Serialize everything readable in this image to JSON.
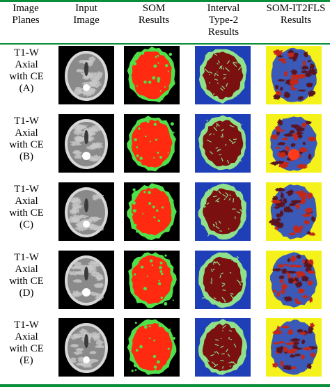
{
  "headers": [
    [
      "Image",
      "Planes"
    ],
    [
      "Input",
      "Image"
    ],
    [
      "SOM",
      "Results"
    ],
    [
      "Interval",
      "Type-2",
      "Results"
    ],
    [
      "SOM-IT2FLS",
      "Results"
    ]
  ],
  "rows": [
    {
      "label": [
        "T1-W",
        "Axial",
        "with CE",
        "(A)"
      ]
    },
    {
      "label": [
        "T1-W",
        "Axial",
        "with CE",
        "(B)"
      ]
    },
    {
      "label": [
        "T1-W",
        "Axial",
        "with CE",
        "(C)"
      ]
    },
    {
      "label": [
        "T1-W",
        "Axial",
        "with CE",
        "(D)"
      ]
    },
    {
      "label": [
        "T1-W",
        "Axial",
        "with CE",
        "(E)"
      ]
    }
  ],
  "colors": {
    "rule": "#0c8f3a",
    "mri_bg": "#000000",
    "som_bg": "#000000",
    "som_tissue": "#ff2a10",
    "som_edge": "#4fe04a",
    "it2_bg": "#1f3fb8",
    "it2_edge": "#8fe08a",
    "it2_tissue": "#7a1010",
    "fls_bg": "#f4f21a",
    "fls_tissue": "#3b59b7",
    "fls_red": "#c2281a",
    "fls_dark": "#5a1420"
  }
}
